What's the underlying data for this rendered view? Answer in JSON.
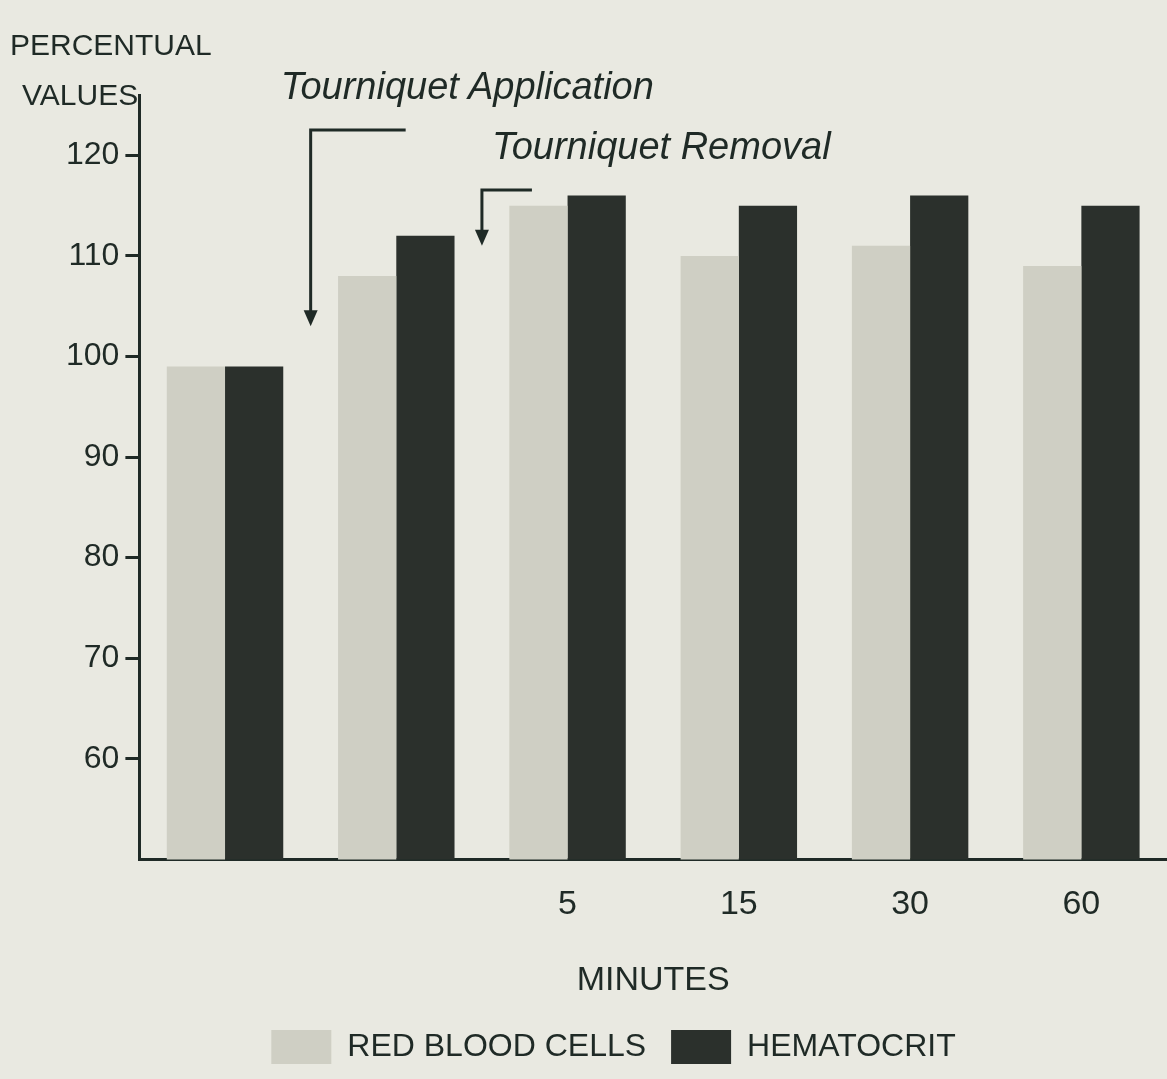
{
  "chart_data": {
    "type": "bar",
    "xlabel": "MINUTES",
    "ylabel": "PERCENTUAL VALUES",
    "categories": [
      null,
      null,
      "5",
      "15",
      "30",
      "60"
    ],
    "series": [
      {
        "name": "RED BLOOD CELLS",
        "color": "#cfcfc4",
        "values": [
          99,
          108,
          115,
          110,
          111,
          109
        ]
      },
      {
        "name": "HEMATOCRIT",
        "color": "#2b302c",
        "values": [
          99,
          112,
          116,
          115,
          116,
          115
        ]
      }
    ],
    "ylim": [
      50,
      126
    ],
    "yticks": [
      60,
      70,
      80,
      90,
      100,
      110,
      120
    ],
    "annotations": [
      "Tourniquet Application",
      "Tourniquet Removal"
    ],
    "grid": false,
    "legend": "bottom"
  }
}
